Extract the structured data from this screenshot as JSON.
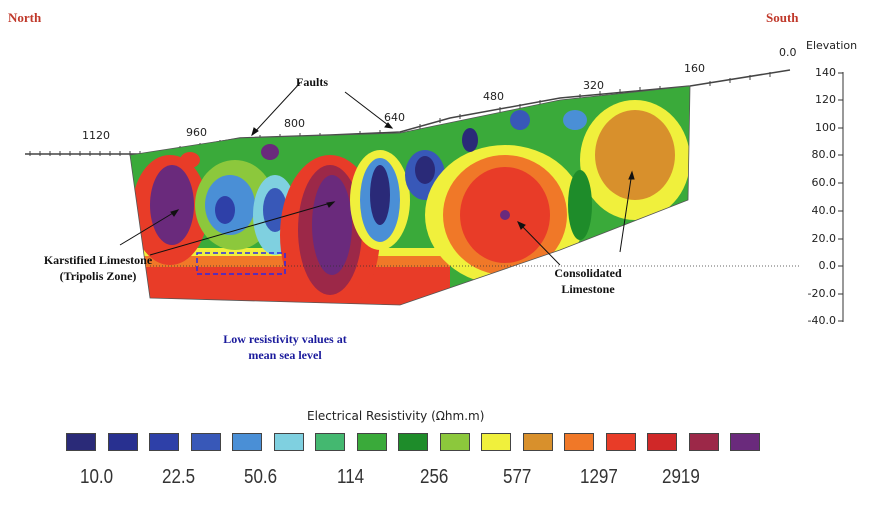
{
  "header": {
    "left": "North",
    "right": "South"
  },
  "distance_ticks": [
    "1120",
    "960",
    "800",
    "640",
    "480",
    "320",
    "160",
    "0.0"
  ],
  "elevation": {
    "title": "Elevation",
    "labels": [
      "140",
      "120",
      "100",
      "80.0",
      "60.0",
      "40.0",
      "20.0",
      "0.0",
      "-20.0",
      "-40.0"
    ]
  },
  "annotations": {
    "faults": "Faults",
    "karstified_line1": "Karstified Limestone",
    "karstified_line2": "(Tripolis Zone)",
    "consolidated_line1": "Consolidated",
    "consolidated_line2": "Limestone",
    "low_res_line1": "Low resistivity values at",
    "low_res_line2": "mean sea level"
  },
  "legend": {
    "title": "Electrical Resistivity (Ωhm.m)",
    "colors": [
      "#2a2a78",
      "#283090",
      "#2e40a8",
      "#3858b8",
      "#4a8fd6",
      "#7fd0e0",
      "#44b870",
      "#3aaa3a",
      "#1e8c2a",
      "#8cc83c",
      "#f0f03c",
      "#d8902c",
      "#f07828",
      "#e83c28",
      "#d02828",
      "#9c2848",
      "#6a2a7c"
    ],
    "labels": [
      "10.0",
      "22.5",
      "50.6",
      "114",
      "256",
      "577",
      "1297",
      "2919"
    ]
  },
  "colors": {
    "direction_text": "#c0392b",
    "annotation_blue": "#1a1a9c"
  }
}
